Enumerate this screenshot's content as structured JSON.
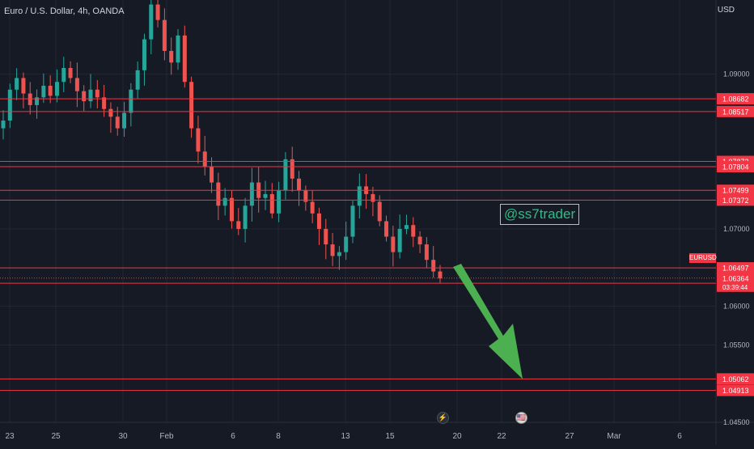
{
  "header": {
    "title": "Euro / U.S. Dollar, 4h, OANDA",
    "currency": "USD",
    "watermark": "@ss7trader",
    "ticker": "EURUSD",
    "countdown": "03:39:44"
  },
  "colors": {
    "background": "#161a25",
    "bull": "#26a69a",
    "bear": "#ef5350",
    "level_line": "#f23645",
    "arrow": "#4caf50",
    "grid": "#232733"
  },
  "events": [
    {
      "name": "earnings-icon",
      "glyph": "⚡"
    },
    {
      "name": "us-flag-icon",
      "glyph": "🇺🇸"
    }
  ],
  "chart_data": {
    "type": "candlestick",
    "title": "Euro / U.S. Dollar, 4h, OANDA",
    "ylim": [
      1.0425,
      1.1
    ],
    "y_ticks": [
      "1.09000",
      "1.07000",
      "1.06000",
      "1.05500",
      "1.04500"
    ],
    "x_ticks": [
      "23",
      "25",
      "30",
      "Feb",
      "6",
      "8",
      "13",
      "15",
      "20",
      "22",
      "27",
      "Mar",
      "6"
    ],
    "levels": [
      {
        "label": "1.08682",
        "value": 1.08682
      },
      {
        "label": "1.08517",
        "value": 1.08517
      },
      {
        "label": "1.07872",
        "value": 1.07872
      },
      {
        "label": "1.07804",
        "value": 1.07804
      },
      {
        "label": "1.07499",
        "value": 1.07499
      },
      {
        "label": "1.07372",
        "value": 1.07372
      },
      {
        "label": "1.06497",
        "value": 1.06497
      },
      {
        "label": "1.06298",
        "value": 1.06298
      },
      {
        "label": "1.05062",
        "value": 1.05062
      },
      {
        "label": "1.04913",
        "value": 1.04913
      }
    ],
    "last_price": {
      "label": "1.06364",
      "value": 1.06364
    },
    "projection_target": 1.0506,
    "price_path": [
      1.084,
      1.088,
      1.0895,
      1.0875,
      1.086,
      1.087,
      1.0885,
      1.0872,
      1.089,
      1.0908,
      1.0895,
      1.0878,
      1.0865,
      1.088,
      1.087,
      1.0855,
      1.0845,
      1.083,
      1.085,
      1.088,
      1.0905,
      1.0945,
      1.099,
      1.097,
      1.093,
      1.0915,
      1.095,
      1.089,
      1.083,
      1.08,
      1.078,
      1.076,
      1.073,
      1.074,
      1.071,
      1.07,
      1.073,
      1.076,
      1.074,
      1.0745,
      1.072,
      1.075,
      1.079,
      1.0765,
      1.075,
      1.0735,
      1.072,
      1.07,
      1.068,
      1.0665,
      1.067,
      1.069,
      1.073,
      1.0755,
      1.0745,
      1.0735,
      1.071,
      1.069,
      1.067,
      1.07,
      1.0705,
      1.069,
      1.068,
      1.066,
      1.0645,
      1.0636
    ]
  }
}
